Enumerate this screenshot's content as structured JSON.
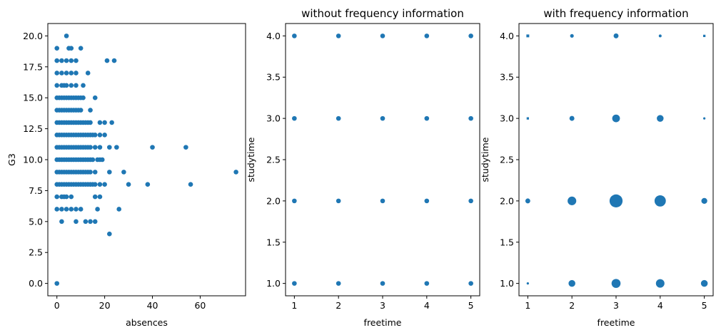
{
  "chart_data": [
    {
      "type": "scatter",
      "title": "",
      "xlabel": "absences",
      "ylabel": "G3",
      "xlim": [
        -3.8,
        79
      ],
      "ylim": [
        -1.0,
        21.0
      ],
      "xticks": [
        0,
        20,
        40,
        60
      ],
      "xtick_labels": [
        "0",
        "20",
        "40",
        "60"
      ],
      "yticks": [
        0,
        2.5,
        5,
        7.5,
        10,
        12.5,
        15,
        17.5,
        20
      ],
      "ytick_labels": [
        "0.0",
        "2.5",
        "5.0",
        "7.5",
        "10.0",
        "12.5",
        "15.0",
        "17.5",
        "20.0"
      ],
      "grid": false,
      "color": "#1f77b4",
      "points": [
        [
          0,
          0
        ],
        [
          4,
          20
        ],
        [
          5,
          19
        ],
        [
          6,
          19
        ],
        [
          0,
          19
        ],
        [
          10,
          19
        ],
        [
          0,
          18
        ],
        [
          2,
          18
        ],
        [
          4,
          18
        ],
        [
          6,
          18
        ],
        [
          8,
          18
        ],
        [
          21,
          18
        ],
        [
          24,
          18
        ],
        [
          0,
          17
        ],
        [
          2,
          17
        ],
        [
          4,
          17
        ],
        [
          6,
          17
        ],
        [
          8,
          17
        ],
        [
          13,
          17
        ],
        [
          0,
          16
        ],
        [
          2,
          16
        ],
        [
          3,
          16
        ],
        [
          4,
          16
        ],
        [
          6,
          16
        ],
        [
          8,
          16
        ],
        [
          11,
          16
        ],
        [
          0,
          15
        ],
        [
          1,
          15
        ],
        [
          2,
          15
        ],
        [
          3,
          15
        ],
        [
          4,
          15
        ],
        [
          5,
          15
        ],
        [
          6,
          15
        ],
        [
          7,
          15
        ],
        [
          8,
          15
        ],
        [
          9,
          15
        ],
        [
          10,
          15
        ],
        [
          11,
          15
        ],
        [
          16,
          15
        ],
        [
          0,
          14
        ],
        [
          1,
          14
        ],
        [
          2,
          14
        ],
        [
          3,
          14
        ],
        [
          4,
          14
        ],
        [
          5,
          14
        ],
        [
          6,
          14
        ],
        [
          7,
          14
        ],
        [
          8,
          14
        ],
        [
          9,
          14
        ],
        [
          10,
          14
        ],
        [
          14,
          14
        ],
        [
          0,
          13
        ],
        [
          1,
          13
        ],
        [
          2,
          13
        ],
        [
          3,
          13
        ],
        [
          4,
          13
        ],
        [
          5,
          13
        ],
        [
          6,
          13
        ],
        [
          7,
          13
        ],
        [
          8,
          13
        ],
        [
          9,
          13
        ],
        [
          10,
          13
        ],
        [
          11,
          13
        ],
        [
          12,
          13
        ],
        [
          13,
          13
        ],
        [
          14,
          13
        ],
        [
          18,
          13
        ],
        [
          20,
          13
        ],
        [
          23,
          13
        ],
        [
          0,
          12
        ],
        [
          1,
          12
        ],
        [
          2,
          12
        ],
        [
          3,
          12
        ],
        [
          4,
          12
        ],
        [
          5,
          12
        ],
        [
          6,
          12
        ],
        [
          7,
          12
        ],
        [
          8,
          12
        ],
        [
          9,
          12
        ],
        [
          10,
          12
        ],
        [
          11,
          12
        ],
        [
          12,
          12
        ],
        [
          13,
          12
        ],
        [
          14,
          12
        ],
        [
          15,
          12
        ],
        [
          16,
          12
        ],
        [
          18,
          12
        ],
        [
          20,
          12
        ],
        [
          0,
          11
        ],
        [
          1,
          11
        ],
        [
          2,
          11
        ],
        [
          3,
          11
        ],
        [
          4,
          11
        ],
        [
          5,
          11
        ],
        [
          6,
          11
        ],
        [
          7,
          11
        ],
        [
          8,
          11
        ],
        [
          9,
          11
        ],
        [
          10,
          11
        ],
        [
          11,
          11
        ],
        [
          12,
          11
        ],
        [
          13,
          11
        ],
        [
          14,
          11
        ],
        [
          16,
          11
        ],
        [
          18,
          11
        ],
        [
          22,
          11
        ],
        [
          25,
          11
        ],
        [
          40,
          11
        ],
        [
          54,
          11
        ],
        [
          0,
          10
        ],
        [
          1,
          10
        ],
        [
          2,
          10
        ],
        [
          3,
          10
        ],
        [
          4,
          10
        ],
        [
          5,
          10
        ],
        [
          6,
          10
        ],
        [
          7,
          10
        ],
        [
          8,
          10
        ],
        [
          9,
          10
        ],
        [
          10,
          10
        ],
        [
          11,
          10
        ],
        [
          12,
          10
        ],
        [
          13,
          10
        ],
        [
          14,
          10
        ],
        [
          15,
          10
        ],
        [
          17,
          10
        ],
        [
          18,
          10
        ],
        [
          19,
          10
        ],
        [
          0,
          9
        ],
        [
          1,
          9
        ],
        [
          2,
          9
        ],
        [
          3,
          9
        ],
        [
          4,
          9
        ],
        [
          5,
          9
        ],
        [
          6,
          9
        ],
        [
          7,
          9
        ],
        [
          8,
          9
        ],
        [
          9,
          9
        ],
        [
          10,
          9
        ],
        [
          11,
          9
        ],
        [
          12,
          9
        ],
        [
          13,
          9
        ],
        [
          14,
          9
        ],
        [
          16,
          9
        ],
        [
          22,
          9
        ],
        [
          28,
          9
        ],
        [
          75,
          9
        ],
        [
          0,
          8
        ],
        [
          1,
          8
        ],
        [
          2,
          8
        ],
        [
          3,
          8
        ],
        [
          4,
          8
        ],
        [
          5,
          8
        ],
        [
          6,
          8
        ],
        [
          7,
          8
        ],
        [
          8,
          8
        ],
        [
          9,
          8
        ],
        [
          10,
          8
        ],
        [
          11,
          8
        ],
        [
          12,
          8
        ],
        [
          13,
          8
        ],
        [
          14,
          8
        ],
        [
          15,
          8
        ],
        [
          16,
          8
        ],
        [
          18,
          8
        ],
        [
          20,
          8
        ],
        [
          30,
          8
        ],
        [
          38,
          8
        ],
        [
          56,
          8
        ],
        [
          0,
          7
        ],
        [
          2,
          7
        ],
        [
          3,
          7
        ],
        [
          4,
          7
        ],
        [
          6,
          7
        ],
        [
          16,
          7
        ],
        [
          18,
          7
        ],
        [
          0,
          6
        ],
        [
          2,
          6
        ],
        [
          4,
          6
        ],
        [
          6,
          6
        ],
        [
          8,
          6
        ],
        [
          10,
          6
        ],
        [
          17,
          6
        ],
        [
          26,
          6
        ],
        [
          2,
          5
        ],
        [
          8,
          5
        ],
        [
          12,
          5
        ],
        [
          14,
          5
        ],
        [
          16,
          5
        ],
        [
          22,
          4
        ]
      ]
    },
    {
      "type": "scatter",
      "title": "without frequency information",
      "xlabel": "freetime",
      "ylabel": "studytime",
      "xlim": [
        0.8,
        5.2
      ],
      "ylim": [
        0.85,
        4.15
      ],
      "xticks": [
        1,
        2,
        3,
        4,
        5
      ],
      "xtick_labels": [
        "1",
        "2",
        "3",
        "4",
        "5"
      ],
      "yticks": [
        1.0,
        1.5,
        2.0,
        2.5,
        3.0,
        3.5,
        4.0
      ],
      "ytick_labels": [
        "1.0",
        "1.5",
        "2.0",
        "2.5",
        "3.0",
        "3.5",
        "4.0"
      ],
      "grid": false,
      "color": "#1f77b4",
      "points": [
        [
          1,
          4
        ],
        [
          2,
          4
        ],
        [
          3,
          4
        ],
        [
          4,
          4
        ],
        [
          5,
          4
        ],
        [
          1,
          3
        ],
        [
          2,
          3
        ],
        [
          3,
          3
        ],
        [
          4,
          3
        ],
        [
          5,
          3
        ],
        [
          1,
          2
        ],
        [
          2,
          2
        ],
        [
          3,
          2
        ],
        [
          4,
          2
        ],
        [
          5,
          2
        ],
        [
          1,
          1
        ],
        [
          2,
          1
        ],
        [
          3,
          1
        ],
        [
          4,
          1
        ],
        [
          5,
          1
        ]
      ]
    },
    {
      "type": "scatter",
      "title": "with frequency information",
      "xlabel": "freetime",
      "ylabel": "studytime",
      "xlim": [
        0.8,
        5.2
      ],
      "ylim": [
        0.85,
        4.15
      ],
      "xticks": [
        1,
        2,
        3,
        4,
        5
      ],
      "xtick_labels": [
        "1",
        "2",
        "3",
        "4",
        "5"
      ],
      "yticks": [
        1.0,
        1.5,
        2.0,
        2.5,
        3.0,
        3.5,
        4.0
      ],
      "ytick_labels": [
        "1.0",
        "1.5",
        "2.0",
        "2.5",
        "3.0",
        "3.5",
        "4.0"
      ],
      "grid": false,
      "color": "#1f77b4",
      "note_size": "marker area proportional to count",
      "points": [
        {
          "x": 1,
          "y": 4,
          "count": 3,
          "shape": "square"
        },
        {
          "x": 2,
          "y": 4,
          "count": 5
        },
        {
          "x": 3,
          "y": 4,
          "count": 9
        },
        {
          "x": 4,
          "y": 4,
          "count": 3
        },
        {
          "x": 5,
          "y": 4,
          "count": 2,
          "shape": "square"
        },
        {
          "x": 1,
          "y": 3,
          "count": 2,
          "shape": "square"
        },
        {
          "x": 2,
          "y": 3,
          "count": 9
        },
        {
          "x": 3,
          "y": 3,
          "count": 22
        },
        {
          "x": 4,
          "y": 3,
          "count": 17
        },
        {
          "x": 5,
          "y": 3,
          "count": 1
        },
        {
          "x": 1,
          "y": 2,
          "count": 9
        },
        {
          "x": 2,
          "y": 2,
          "count": 28
        },
        {
          "x": 3,
          "y": 2,
          "count": 63
        },
        {
          "x": 4,
          "y": 2,
          "count": 47
        },
        {
          "x": 5,
          "y": 2,
          "count": 13
        },
        {
          "x": 1,
          "y": 1,
          "count": 2
        },
        {
          "x": 2,
          "y": 1,
          "count": 17
        },
        {
          "x": 3,
          "y": 1,
          "count": 30
        },
        {
          "x": 4,
          "y": 1,
          "count": 27
        },
        {
          "x": 5,
          "y": 1,
          "count": 17
        }
      ]
    }
  ]
}
